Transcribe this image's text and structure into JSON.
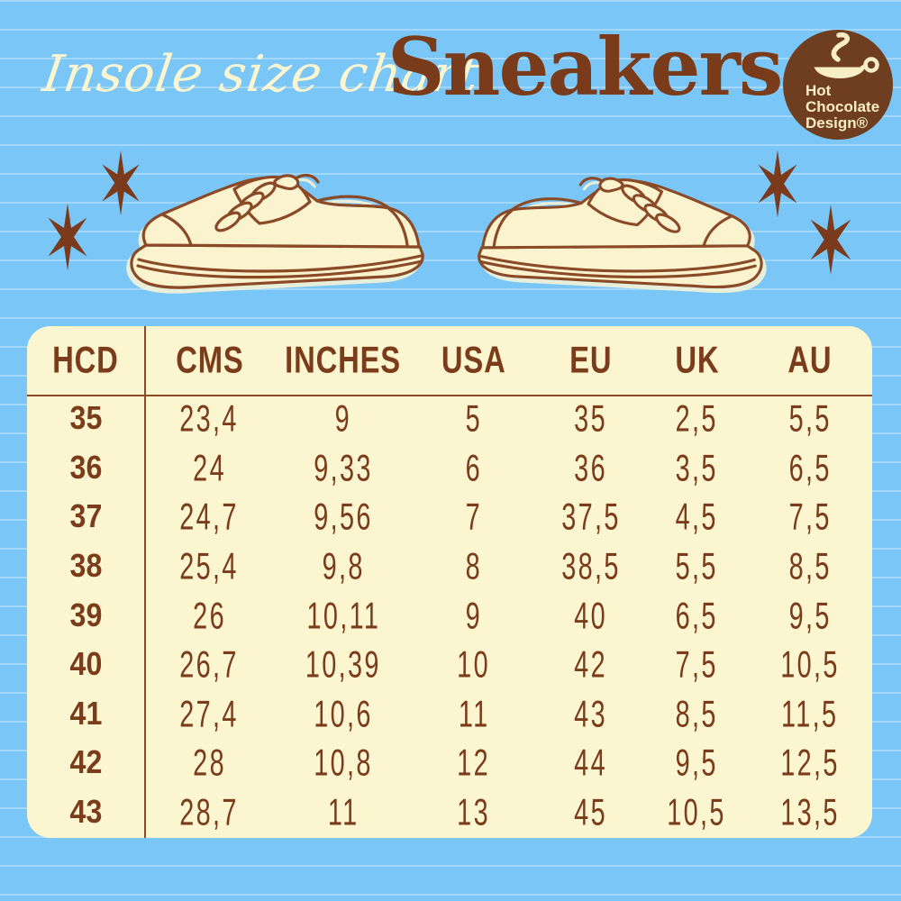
{
  "colors": {
    "background_blue": "#7ac6f6",
    "stripe_blue": "#a8dcfb",
    "cream": "#fbf5d0",
    "text_brown": "#7b3c1c",
    "outline_brown": "#8a4a28",
    "logo_brown": "#6f3e20"
  },
  "header": {
    "script_title": "Insole size chart",
    "main_title": "Sneakers",
    "logo": {
      "line1": "Hot",
      "line2": "Chocolate",
      "line3": "Design®",
      "icon": "hot-chocolate-cup-icon"
    }
  },
  "table": {
    "columns": [
      "HCD",
      "CMS",
      "INCHES",
      "USA",
      "EU",
      "UK",
      "AU"
    ],
    "rows": [
      [
        "35",
        "23,4",
        "9",
        "5",
        "35",
        "2,5",
        "5,5"
      ],
      [
        "36",
        "24",
        "9,33",
        "6",
        "36",
        "3,5",
        "6,5"
      ],
      [
        "37",
        "24,7",
        "9,56",
        "7",
        "37,5",
        "4,5",
        "7,5"
      ],
      [
        "38",
        "25,4",
        "9,8",
        "8",
        "38,5",
        "5,5",
        "8,5"
      ],
      [
        "39",
        "26",
        "10,11",
        "9",
        "40",
        "6,5",
        "9,5"
      ],
      [
        "40",
        "26,7",
        "10,39",
        "10",
        "42",
        "7,5",
        "10,5"
      ],
      [
        "41",
        "27,4",
        "10,6",
        "11",
        "43",
        "8,5",
        "11,5"
      ],
      [
        "42",
        "28",
        "10,8",
        "12",
        "44",
        "9,5",
        "12,5"
      ],
      [
        "43",
        "28,7",
        "11",
        "13",
        "45",
        "10,5",
        "13,5"
      ]
    ]
  }
}
